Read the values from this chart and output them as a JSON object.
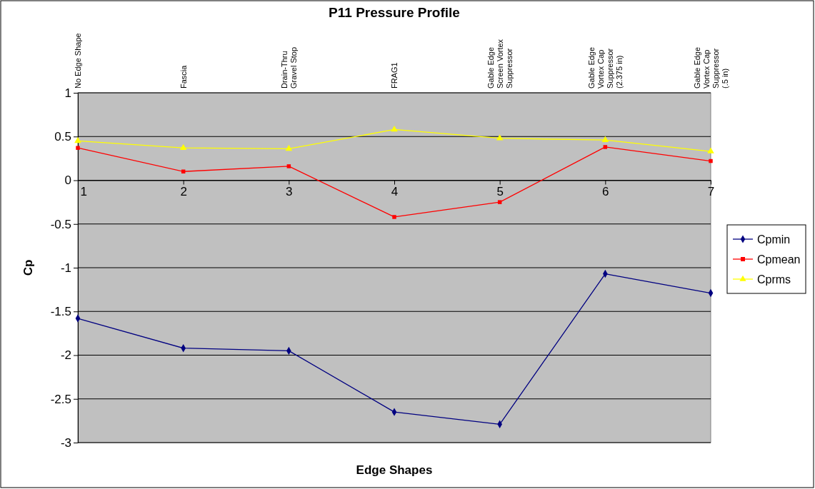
{
  "chart_data": {
    "type": "line",
    "title": "P11 Pressure Profile",
    "xlabel": "Edge Shapes",
    "ylabel": "Cp",
    "x": [
      1,
      2,
      3,
      4,
      5,
      6,
      7
    ],
    "xlim": [
      1,
      7
    ],
    "xticks": [
      1,
      2,
      3,
      4,
      5,
      6,
      7
    ],
    "ylim": [
      -3,
      1
    ],
    "yticks": [
      -3,
      -2.5,
      -2,
      -1.5,
      -1,
      -0.5,
      0,
      0.5,
      1
    ],
    "grid": "y",
    "legend": "right",
    "series": [
      {
        "name": "Cpmin",
        "color": "#000080",
        "marker": "diamond",
        "values": [
          -1.58,
          -1.92,
          -1.95,
          -2.65,
          -2.79,
          -1.07,
          -1.29
        ]
      },
      {
        "name": "Cpmean",
        "color": "#ff0000",
        "marker": "square",
        "values": [
          0.37,
          0.1,
          0.16,
          -0.42,
          -0.25,
          0.38,
          0.22
        ]
      },
      {
        "name": "Cprms",
        "color": "#ffff00",
        "marker": "triangle",
        "values": [
          0.45,
          0.37,
          0.36,
          0.58,
          0.48,
          0.46,
          0.33
        ]
      }
    ],
    "annotations": [
      "No Edge Shape",
      "Fascia",
      "Drain-Thru Gravel Stop",
      "FRAG1",
      "Gable Edge Screen Vortex Suppressor",
      "Gable Edge Vortex Cap Suppressor (2.375 in)",
      "Gable Edge Vortex Cap Suppressor (.5 in)"
    ]
  }
}
